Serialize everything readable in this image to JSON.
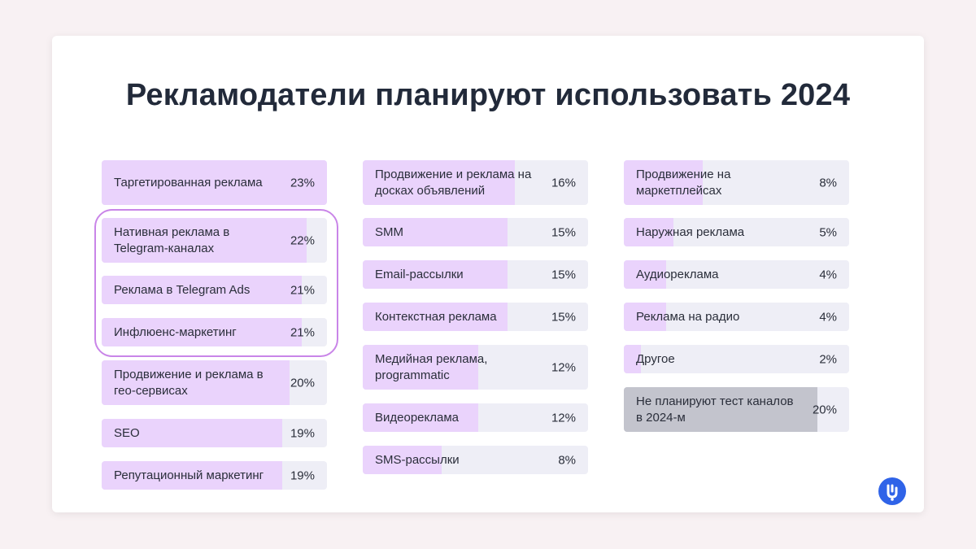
{
  "title": "Рекламодатели планируют использовать 2024",
  "colors": {
    "bar_fill": "#ead3fc",
    "bar_track": "#eeeef6",
    "highlight": "#c985e8",
    "other_fill": "#c3c4cd",
    "logo": "#2f63e8"
  },
  "chart_data": {
    "type": "bar",
    "orientation": "horizontal",
    "title": "Рекламодатели планируют использовать 2024",
    "xlim": [
      0,
      25
    ],
    "highlighted": [
      "Нативная реклама в Telegram-каналах",
      "Реклама в Telegram Ads",
      "Инфлюенс-маркетинг"
    ],
    "columns": [
      [
        {
          "label": "Таргетированная реклама",
          "value": 23,
          "value_text": "23%"
        },
        {
          "label": "Нативная реклама в Telegram-каналах",
          "value": 22,
          "value_text": "22%"
        },
        {
          "label": "Реклама в Telegram Ads",
          "value": 21,
          "value_text": "21%"
        },
        {
          "label": "Инфлюенс-маркетинг",
          "value": 21,
          "value_text": "21%"
        },
        {
          "label": "Продвижение и реклама в гео-сервисах",
          "value": 20,
          "value_text": "20%"
        },
        {
          "label": "SEO",
          "value": 19,
          "value_text": "19%"
        },
        {
          "label": "Репутационный маркетинг",
          "value": 19,
          "value_text": "19%"
        }
      ],
      [
        {
          "label": "Продвижение и реклама на досках объявлений",
          "value": 16,
          "value_text": "16%"
        },
        {
          "label": "SMM",
          "value": 15,
          "value_text": "15%"
        },
        {
          "label": "Email-рассылки",
          "value": 15,
          "value_text": "15%"
        },
        {
          "label": "Контекстная реклама",
          "value": 15,
          "value_text": "15%"
        },
        {
          "label": "Медийная реклама, programmatic",
          "value": 12,
          "value_text": "12%"
        },
        {
          "label": "Видеореклама",
          "value": 12,
          "value_text": "12%"
        },
        {
          "label": "SMS-рассылки",
          "value": 8,
          "value_text": "8%"
        }
      ],
      [
        {
          "label": "Продвижение на маркетплейсах",
          "value": 8,
          "value_text": "8%"
        },
        {
          "label": "Наружная реклама",
          "value": 5,
          "value_text": "5%"
        },
        {
          "label": "Аудиореклама",
          "value": 4,
          "value_text": "4%"
        },
        {
          "label": "Реклама на радио",
          "value": 4,
          "value_text": "4%"
        },
        {
          "label": "Другое",
          "value": 2,
          "value_text": "2%"
        },
        {
          "label": "Не планируют тест каналов в 2024-м",
          "value": 20,
          "value_text": "20%"
        }
      ]
    ]
  }
}
